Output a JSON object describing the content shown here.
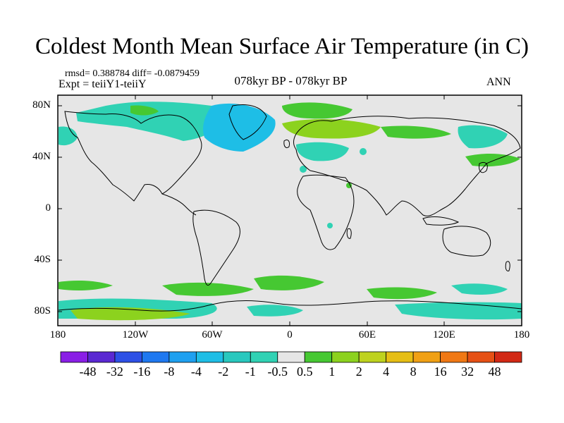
{
  "title": "Coldest Month Mean Surface Air Temperature (in C)",
  "stats": "rmsd= 0.388784 diff= -0.0879459",
  "experiment": "Expt = teiiY1-teiiY",
  "period": "078kyr BP - 078kyr BP",
  "season": "ANN",
  "axes": {
    "y_ticks": [
      "80N",
      "40N",
      "0",
      "40S",
      "80S"
    ],
    "x_ticks": [
      "180",
      "120W",
      "60W",
      "0",
      "60E",
      "120E",
      "180"
    ]
  },
  "colorbar": {
    "labels": [
      "-48",
      "-32",
      "-16",
      "-8",
      "-4",
      "-2",
      "-1",
      "-0.5",
      "0.5",
      "1",
      "2",
      "4",
      "8",
      "16",
      "32",
      "48"
    ],
    "colors": [
      "#8a1ee6",
      "#5a28d2",
      "#2d50e6",
      "#1e78f0",
      "#1ea0f0",
      "#1ebee6",
      "#28c8be",
      "#30d2b4",
      "#e6e6e6",
      "#46c832",
      "#8cd21e",
      "#bed21e",
      "#e6be14",
      "#f0a014",
      "#f07814",
      "#e65014",
      "#d22814"
    ]
  },
  "colors": {
    "background": "#e6e6e6",
    "cool": "#30d2b4",
    "deep_cool": "#1ebee6",
    "warm": "#46c832",
    "warmer": "#8cd21e"
  }
}
